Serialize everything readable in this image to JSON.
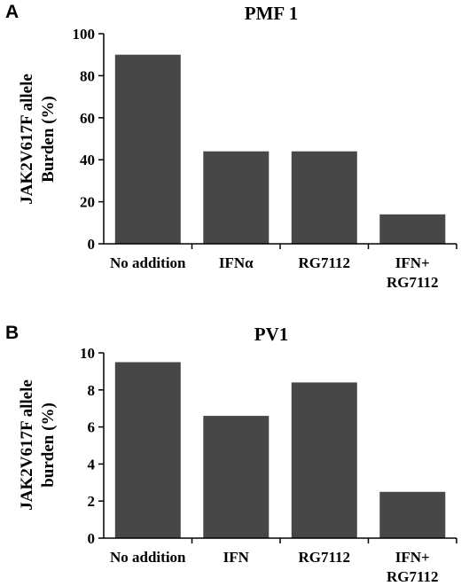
{
  "chart_data": [
    {
      "type": "bar",
      "panel": "A",
      "title": "PMF 1",
      "ylabel": [
        "JAK2V617F allele",
        "Burden (%)"
      ],
      "categories": [
        [
          "No addition"
        ],
        [
          "IFNα"
        ],
        [
          "RG7112"
        ],
        [
          "IFN+",
          "RG7112"
        ]
      ],
      "values": [
        90,
        44,
        44,
        14
      ],
      "ylim": [
        0,
        100
      ],
      "yticks": [
        0,
        20,
        40,
        60,
        80,
        100
      ],
      "grid": false,
      "bar_color": "#474747"
    },
    {
      "type": "bar",
      "panel": "B",
      "title": "PV1",
      "ylabel": [
        "JAK2V617F allele",
        "burden (%)"
      ],
      "categories": [
        [
          "No addition"
        ],
        [
          "IFN"
        ],
        [
          "RG7112"
        ],
        [
          "IFN+",
          "RG7112"
        ]
      ],
      "values": [
        9.5,
        6.6,
        8.4,
        2.5
      ],
      "ylim": [
        0,
        10
      ],
      "yticks": [
        0,
        2,
        4,
        6,
        8,
        10
      ],
      "grid": false,
      "bar_color": "#474747"
    }
  ]
}
